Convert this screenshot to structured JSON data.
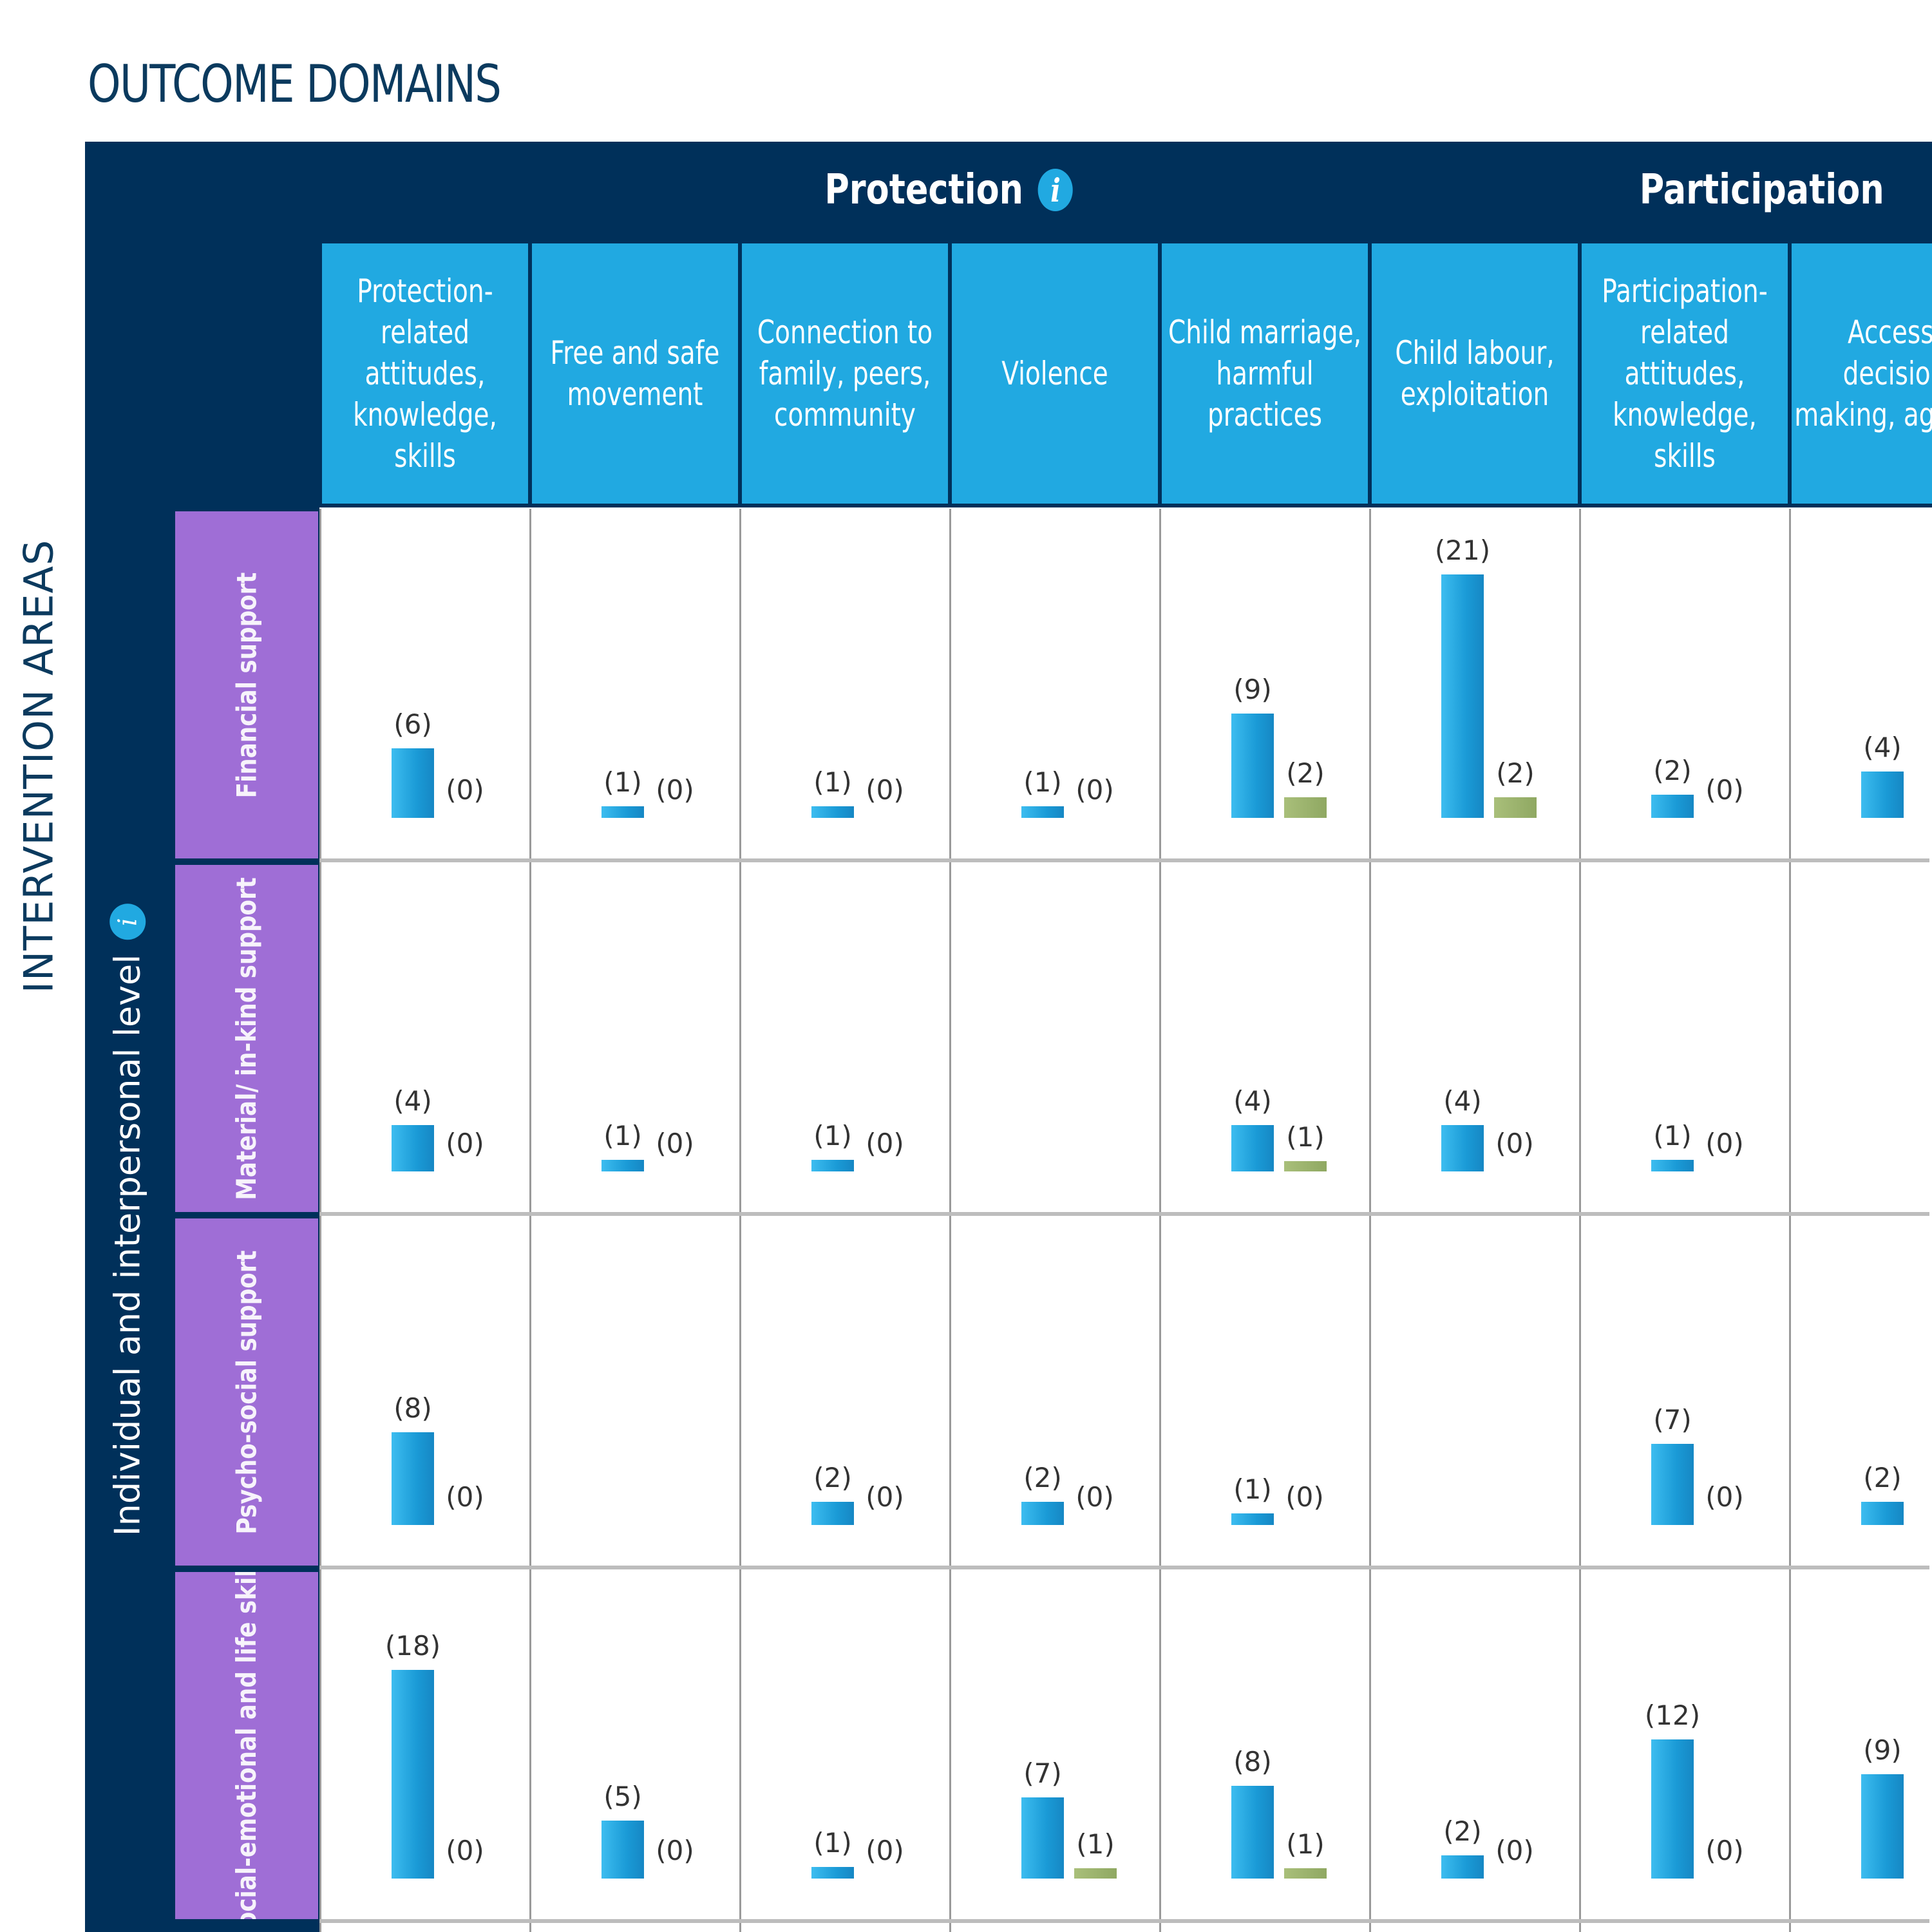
{
  "title": "OUTCOME DOMAINS",
  "side_label": "INTERVENTION AREAS",
  "level": {
    "label": "Individual and interpersonal level",
    "info_icon": "info-icon"
  },
  "domains": [
    {
      "label": "Protection",
      "info_icon": "info-icon"
    },
    {
      "label": "Participation"
    }
  ],
  "colors": {
    "navy": "#00305a",
    "cyan_header": "#21a9e1",
    "purple_row": "#9f6ed6",
    "bar_primary": "#1a9ad6",
    "bar_secondary": "#9db46e"
  },
  "chart_data": {
    "type": "bar",
    "categories": [
      "Protection-related attitudes, knowledge, skills",
      "Free and safe movement",
      "Connection to family, peers, community",
      "Violence",
      "Child marriage, harmful practices",
      "Child labour, exploitation",
      "Participation-related attitudes, knowledge, skills",
      "Access, decision making, agency"
    ],
    "category_domain": [
      "Protection",
      "Protection",
      "Protection",
      "Protection",
      "Protection",
      "Protection",
      "Participation",
      "Participation"
    ],
    "rows": [
      {
        "label": "Financial support",
        "pairs": [
          {
            "primary": "(6)",
            "secondary": "(0)"
          },
          {
            "primary": "(1)",
            "secondary": "(0)"
          },
          {
            "primary": "(1)",
            "secondary": "(0)"
          },
          {
            "primary": "(1)",
            "secondary": "(0)"
          },
          {
            "primary": "(9)",
            "secondary": "(2)"
          },
          {
            "primary": "(21)",
            "secondary": "(2)"
          },
          {
            "primary": "(2)",
            "secondary": "(0)"
          },
          {
            "primary": "(4)",
            "secondary": ""
          }
        ],
        "primary_values": [
          6,
          1,
          1,
          1,
          9,
          21,
          2,
          4
        ],
        "secondary_values": [
          0,
          0,
          0,
          0,
          2,
          2,
          0,
          null
        ]
      },
      {
        "label": "Material/ in-kind support",
        "pairs": [
          {
            "primary": "(4)",
            "secondary": "(0)"
          },
          {
            "primary": "(1)",
            "secondary": "(0)"
          },
          {
            "primary": "(1)",
            "secondary": "(0)"
          },
          {
            "primary": "",
            "secondary": ""
          },
          {
            "primary": "(4)",
            "secondary": "(1)"
          },
          {
            "primary": "(4)",
            "secondary": "(0)"
          },
          {
            "primary": "(1)",
            "secondary": "(0)"
          },
          {
            "primary": "",
            "secondary": ""
          }
        ],
        "primary_values": [
          4,
          1,
          1,
          null,
          4,
          4,
          1,
          null
        ],
        "secondary_values": [
          0,
          0,
          0,
          null,
          1,
          0,
          0,
          null
        ]
      },
      {
        "label": "Psycho-social support",
        "pairs": [
          {
            "primary": "(8)",
            "secondary": "(0)"
          },
          {
            "primary": "",
            "secondary": ""
          },
          {
            "primary": "(2)",
            "secondary": "(0)"
          },
          {
            "primary": "(2)",
            "secondary": "(0)"
          },
          {
            "primary": "(1)",
            "secondary": "(0)"
          },
          {
            "primary": "",
            "secondary": ""
          },
          {
            "primary": "(7)",
            "secondary": "(0)"
          },
          {
            "primary": "(2)",
            "secondary": ""
          }
        ],
        "primary_values": [
          8,
          null,
          2,
          2,
          1,
          null,
          7,
          2
        ],
        "secondary_values": [
          0,
          null,
          0,
          0,
          0,
          null,
          0,
          null
        ]
      },
      {
        "label": "Social-emotional and life skills",
        "pairs": [
          {
            "primary": "(18)",
            "secondary": "(0)"
          },
          {
            "primary": "(5)",
            "secondary": "(0)"
          },
          {
            "primary": "(1)",
            "secondary": "(0)"
          },
          {
            "primary": "(7)",
            "secondary": "(1)"
          },
          {
            "primary": "(8)",
            "secondary": "(1)"
          },
          {
            "primary": "(2)",
            "secondary": "(0)"
          },
          {
            "primary": "(12)",
            "secondary": "(0)"
          },
          {
            "primary": "(9)",
            "secondary": ""
          }
        ],
        "primary_values": [
          18,
          5,
          1,
          7,
          8,
          2,
          12,
          9
        ],
        "secondary_values": [
          0,
          0,
          0,
          1,
          1,
          0,
          0,
          null
        ]
      }
    ]
  }
}
